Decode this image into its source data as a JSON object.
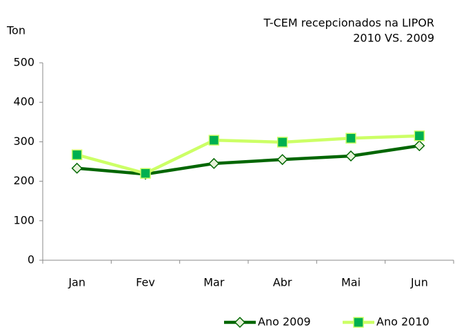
{
  "chart_data": {
    "type": "line",
    "title": "T-CEM recepcionados na LIPOR",
    "subtitle": "2010 VS. 2009",
    "y_label": "Ton",
    "categories": [
      "Jan",
      "Fev",
      "Mar",
      "Abr",
      "Mai",
      "Jun"
    ],
    "series": [
      {
        "name": "Ano 2009",
        "color": "#006600",
        "marker": "diamond",
        "marker_color": "#e6f2d9",
        "values": [
          233,
          218,
          245,
          255,
          264,
          290
        ]
      },
      {
        "name": "Ano 2010",
        "color": "#ccff66",
        "marker": "square",
        "marker_color": "#00b050",
        "values": [
          267,
          220,
          304,
          299,
          309,
          315
        ]
      }
    ],
    "ylim": [
      0,
      500
    ],
    "yticks": [
      0,
      100,
      200,
      300,
      400,
      500
    ],
    "grid": false,
    "legend": "bottom-right"
  }
}
